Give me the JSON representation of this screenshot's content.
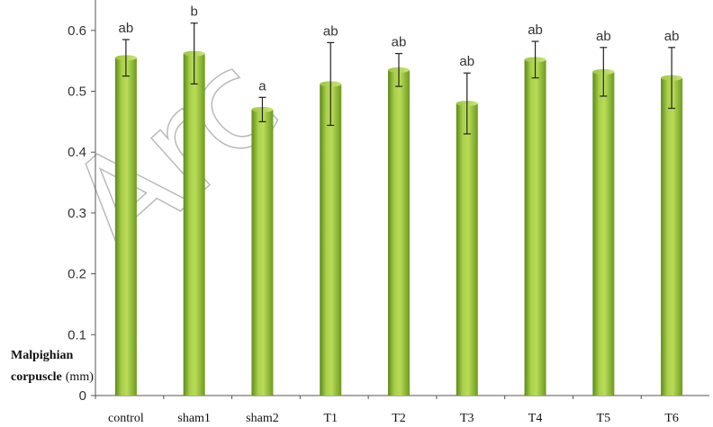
{
  "chart_data": {
    "type": "bar",
    "title": "",
    "xlabel": "",
    "ylabel": {
      "bold": "Malpighian",
      "bold2": "corpuscle",
      "unit": "(mm)"
    },
    "ylim": [
      0,
      0.65
    ],
    "yticks": [
      0,
      0.1,
      0.2,
      0.3,
      0.4,
      0.5,
      0.6
    ],
    "ytick_labels": [
      "0",
      "0.1",
      "0.2",
      "0.3",
      "0.4",
      "0.5",
      "0.6"
    ],
    "grid": false,
    "bar_color": "#8db836",
    "categories": [
      "control",
      "sham1",
      "sham2",
      "T1",
      "T2",
      "T3",
      "T4",
      "T5",
      "T6"
    ],
    "values": [
      0.555,
      0.562,
      0.47,
      0.512,
      0.535,
      0.48,
      0.552,
      0.532,
      0.522
    ],
    "errors": [
      0.03,
      0.05,
      0.02,
      0.068,
      0.027,
      0.05,
      0.03,
      0.04,
      0.05
    ],
    "significance": [
      "ab",
      "b",
      "a",
      "ab",
      "ab",
      "ab",
      "ab",
      "ab",
      "ab"
    ]
  },
  "watermark": "Arc"
}
